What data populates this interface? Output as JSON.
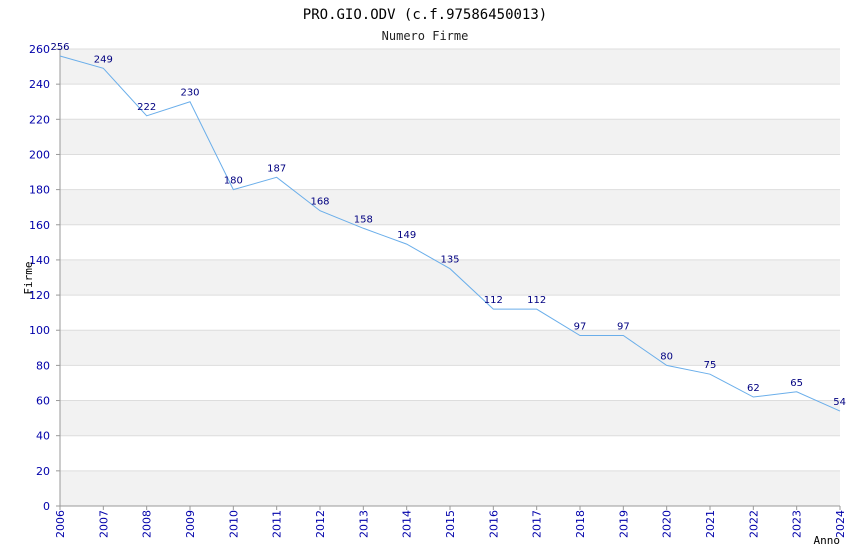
{
  "chart_data": {
    "type": "line",
    "title": "PRO.GIO.ODV (c.f.97586450013)",
    "subtitle": "Numero Firme",
    "xlabel": "Anno",
    "ylabel": "Firme",
    "x": [
      "2006",
      "2007",
      "2008",
      "2009",
      "2010",
      "2011",
      "2012",
      "2013",
      "2014",
      "2015",
      "2016",
      "2017",
      "2018",
      "2019",
      "2020",
      "2021",
      "2022",
      "2023",
      "2024"
    ],
    "values": [
      256,
      249,
      222,
      230,
      180,
      187,
      168,
      158,
      149,
      135,
      112,
      112,
      97,
      97,
      80,
      75,
      62,
      65,
      54
    ],
    "ylim": [
      0,
      260
    ],
    "yticks": [
      0,
      20,
      40,
      60,
      80,
      100,
      120,
      140,
      160,
      180,
      200,
      220,
      240,
      260
    ],
    "grid": "horizontal alternating bands",
    "colors": {
      "line": "#6aaeea",
      "band": "#f2f2f2",
      "gridline": "#dddddd",
      "axis": "#999999",
      "tick_text": "#0000aa",
      "data_text": "#000080"
    }
  }
}
